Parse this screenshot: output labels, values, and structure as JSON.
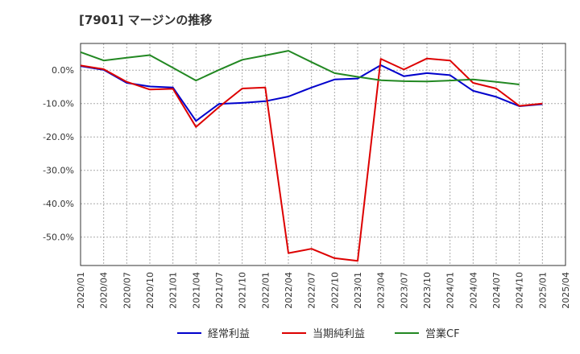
{
  "chart_data": {
    "type": "line",
    "title": "[7901]  マージンの推移",
    "xlabel": "",
    "ylabel": "",
    "ylim": [
      -58.5,
      8
    ],
    "yticks": [
      0,
      -10,
      -20,
      -30,
      -40,
      -50
    ],
    "ytick_labels": [
      "0.0%",
      "-10.0%",
      "-20.0%",
      "-30.0%",
      "-40.0%",
      "-50.0%"
    ],
    "x_tick_labels": [
      "2020/01",
      "2020/04",
      "2020/07",
      "2020/10",
      "2021/01",
      "2021/04",
      "2021/07",
      "2021/10",
      "2022/01",
      "2022/04",
      "2022/07",
      "2022/10",
      "2023/01",
      "2023/04",
      "2023/07",
      "2023/10",
      "2024/01",
      "2024/04",
      "2024/07",
      "2024/10",
      "2025/01",
      "2025/04"
    ],
    "grid": true,
    "legend_position": "bottom",
    "series": [
      {
        "name": "経常利益",
        "color": "#0000cc",
        "values": [
          1.2,
          0.1,
          -3.8,
          -4.9,
          -5.2,
          -15.2,
          -10.1,
          -9.8,
          -9.3,
          -7.9,
          -5.2,
          -2.8,
          -2.5,
          1.5,
          -1.8,
          -0.9,
          -1.5,
          -6.2,
          -8.0,
          -10.8,
          -10.2,
          null
        ]
      },
      {
        "name": "当期純利益",
        "color": "#dd0000",
        "values": [
          1.4,
          0.3,
          -3.5,
          -5.8,
          -5.6,
          -17.0,
          -11.0,
          -5.5,
          -5.2,
          -54.8,
          -53.5,
          -56.3,
          -57.1,
          3.4,
          0.2,
          3.5,
          2.9,
          -3.8,
          -5.5,
          -10.7,
          -10.0,
          null
        ]
      },
      {
        "name": "営業CF",
        "color": "#228822",
        "values": [
          5.4,
          2.9,
          3.7,
          4.5,
          0.7,
          -3.1,
          0.1,
          3.1,
          4.4,
          5.8,
          2.4,
          -0.9,
          -2.0,
          -3.0,
          -3.3,
          -3.4,
          -3.1,
          -2.8,
          -3.5,
          -4.3,
          null,
          null
        ]
      }
    ]
  }
}
